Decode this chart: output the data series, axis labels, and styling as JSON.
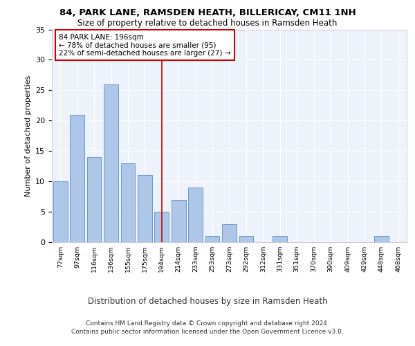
{
  "title1": "84, PARK LANE, RAMSDEN HEATH, BILLERICAY, CM11 1NH",
  "title2": "Size of property relative to detached houses in Ramsden Heath",
  "xlabel": "Distribution of detached houses by size in Ramsden Heath",
  "ylabel": "Number of detached properties",
  "categories": [
    "77sqm",
    "97sqm",
    "116sqm",
    "136sqm",
    "155sqm",
    "175sqm",
    "194sqm",
    "214sqm",
    "233sqm",
    "253sqm",
    "273sqm",
    "292sqm",
    "312sqm",
    "331sqm",
    "351sqm",
    "370sqm",
    "390sqm",
    "409sqm",
    "429sqm",
    "448sqm",
    "468sqm"
  ],
  "values": [
    10,
    21,
    14,
    26,
    13,
    11,
    5,
    7,
    9,
    1,
    3,
    1,
    0,
    1,
    0,
    0,
    0,
    0,
    0,
    1,
    0
  ],
  "bar_color": "#aec6e8",
  "bar_edge_color": "#5a90c8",
  "bg_color": "#eef2fb",
  "grid_color": "#ffffff",
  "vline_x_index": 6,
  "vline_color": "#cc0000",
  "annotation_text": "84 PARK LANE: 196sqm\n← 78% of detached houses are smaller (95)\n22% of semi-detached houses are larger (27) →",
  "annotation_box_color": "#cc0000",
  "ylim": [
    0,
    35
  ],
  "yticks": [
    0,
    5,
    10,
    15,
    20,
    25,
    30,
    35
  ],
  "footer1": "Contains HM Land Registry data © Crown copyright and database right 2024.",
  "footer2": "Contains public sector information licensed under the Open Government Licence v3.0."
}
